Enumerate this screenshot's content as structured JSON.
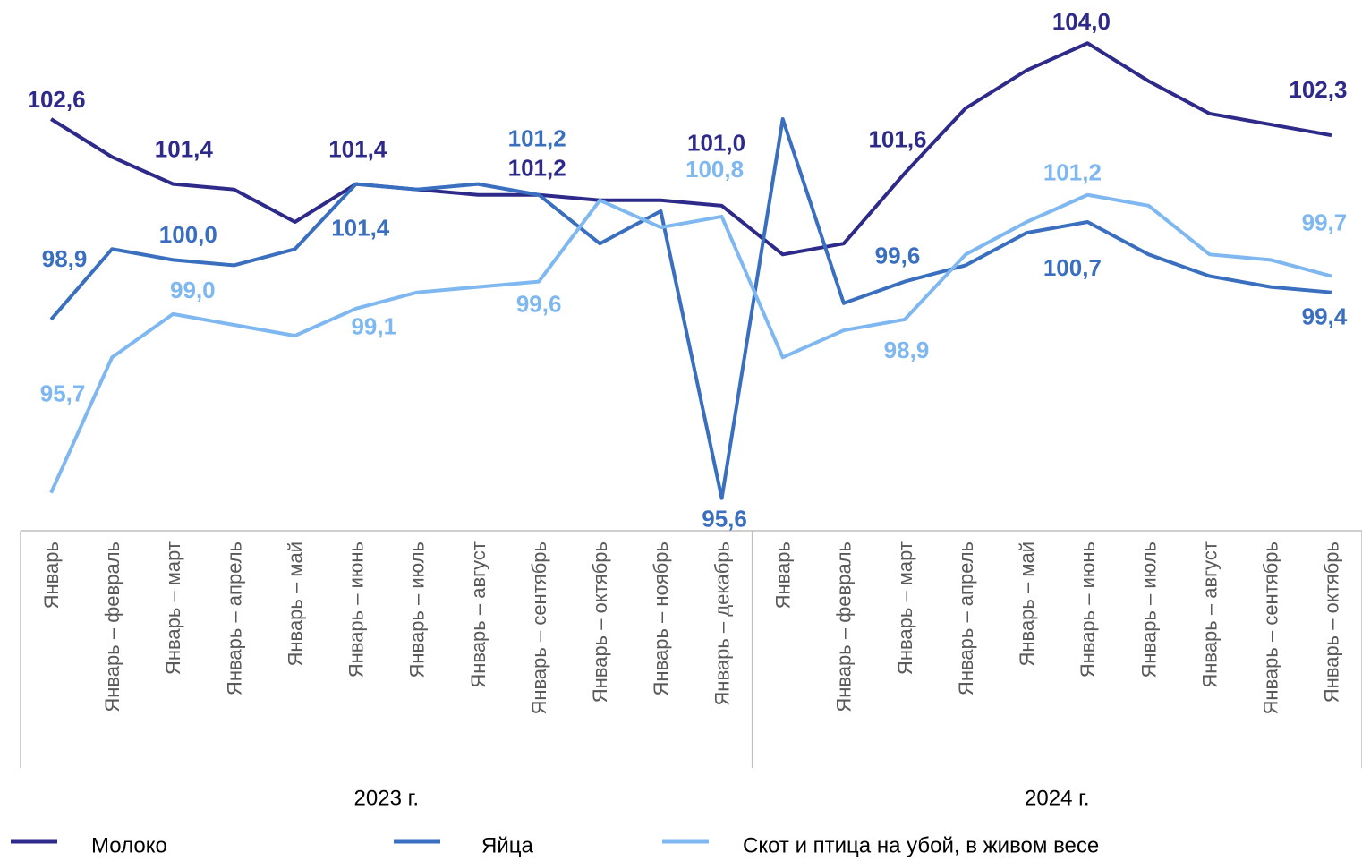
{
  "chart_data": {
    "type": "line",
    "category_groups": [
      {
        "label": "2023 г.",
        "categories": [
          "Январь",
          "Январь – февраль",
          "Январь – март",
          "Январь – апрель",
          "Январь – май",
          "Январь – июнь",
          "Январь – июль",
          "Январь – август",
          "Январь – сентябрь",
          "Январь – октябрь",
          "Январь – ноябрь",
          "Январь – декабрь"
        ]
      },
      {
        "label": "2024 г.",
        "categories": [
          "Январь",
          "Январь – февраль",
          "Январь – март",
          "Январь – апрель",
          "Январь – май",
          "Январь – июнь",
          "Январь – июль",
          "Январь – август",
          "Январь – сентябрь",
          "Январь – октябрь"
        ]
      }
    ],
    "series": [
      {
        "name": "Молоко",
        "color": "#2e2a8a",
        "values": [
          102.6,
          101.9,
          101.4,
          101.3,
          100.7,
          101.4,
          101.3,
          101.2,
          101.2,
          101.1,
          101.1,
          101.0,
          100.1,
          100.3,
          101.6,
          102.8,
          103.5,
          104.0,
          103.3,
          102.7,
          102.5,
          102.3
        ],
        "value_labels": [
          "102,6",
          null,
          "101,4",
          null,
          null,
          "101,4",
          null,
          null,
          "101,2",
          null,
          null,
          "101,0",
          null,
          null,
          "101,6",
          null,
          null,
          "104,0",
          null,
          null,
          null,
          "102,3"
        ]
      },
      {
        "name": "Яйца",
        "color": "#3a6fc0",
        "values": [
          98.9,
          100.2,
          100.0,
          99.9,
          100.2,
          101.4,
          101.3,
          101.4,
          101.2,
          100.3,
          100.9,
          95.6,
          102.6,
          99.2,
          99.6,
          99.9,
          100.5,
          100.7,
          100.1,
          99.7,
          99.5,
          99.4
        ],
        "value_labels": [
          "98,9",
          null,
          "100,0",
          null,
          null,
          "101,4",
          null,
          null,
          "101,2",
          null,
          null,
          "95,6",
          null,
          null,
          "99,6",
          null,
          null,
          "100,7",
          null,
          null,
          null,
          "99,4"
        ]
      },
      {
        "name": "Скот и птица на убой, в живом весе",
        "color": "#7fb8f0",
        "values": [
          95.7,
          98.2,
          99.0,
          98.8,
          98.6,
          99.1,
          99.4,
          99.5,
          99.6,
          101.1,
          100.6,
          100.8,
          98.2,
          98.7,
          98.9,
          100.1,
          100.7,
          101.2,
          101.0,
          100.1,
          100.0,
          99.7
        ],
        "value_labels": [
          "95,7",
          null,
          "99,0",
          null,
          null,
          "99,1",
          null,
          null,
          "99,6",
          null,
          null,
          "100,8",
          null,
          null,
          "98,9",
          null,
          null,
          "101,2",
          null,
          null,
          null,
          "99,7"
        ]
      }
    ],
    "ylim": [
      95,
      104.5
    ]
  }
}
